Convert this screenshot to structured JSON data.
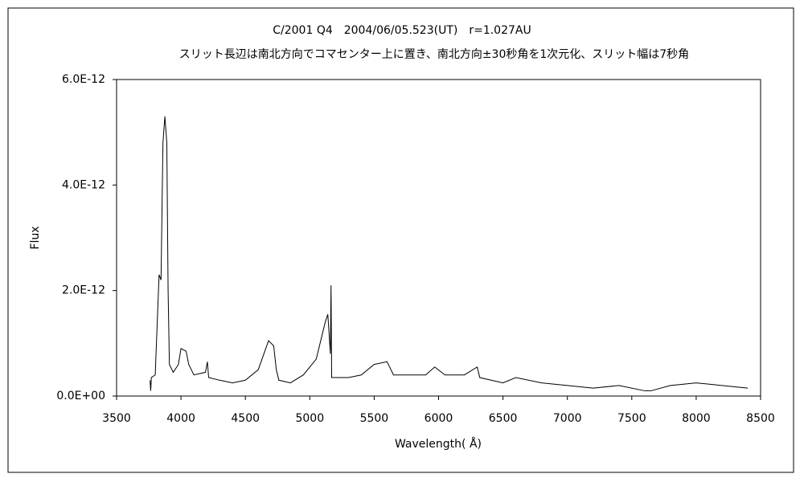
{
  "chart_data": {
    "type": "line",
    "title": "C/2001 Q4　2004/06/05.523(UT)　r=1.027AU",
    "subtitle": "スリット長辺は南北方向でコマセンター上に置き、南北方向±30秒角を1次元化、スリット幅は7秒角",
    "xlabel": "Wavelength( Å)",
    "ylabel": "Flux",
    "x": [
      3760,
      3765,
      3770,
      3800,
      3830,
      3845,
      3860,
      3875,
      3890,
      3900,
      3910,
      3940,
      3980,
      4000,
      4040,
      4060,
      4100,
      4190,
      4205,
      4215,
      4300,
      4400,
      4500,
      4600,
      4680,
      4720,
      4740,
      4760,
      4850,
      4950,
      5050,
      5120,
      5140,
      5160,
      5165,
      5170,
      5300,
      5400,
      5500,
      5600,
      5650,
      5700,
      5900,
      5970,
      6050,
      6200,
      6300,
      6320,
      6500,
      6600,
      6800,
      7000,
      7200,
      7400,
      7600,
      7650,
      7800,
      8000,
      8200,
      8400
    ],
    "series": [
      {
        "name": "Flux",
        "color": "#000000",
        "values": [
          3e-13,
          1e-13,
          3.5e-13,
          4e-13,
          2.3e-12,
          2.2e-12,
          4.8e-12,
          5.3e-12,
          4.8e-12,
          2e-12,
          6e-13,
          4.5e-13,
          6e-13,
          9e-13,
          8.5e-13,
          6e-13,
          4e-13,
          4.5e-13,
          6.5e-13,
          3.5e-13,
          3e-13,
          2.5e-13,
          3e-13,
          5e-13,
          1.05e-12,
          9.5e-13,
          5e-13,
          3e-13,
          2.5e-13,
          4e-13,
          7e-13,
          1.4e-12,
          1.55e-12,
          8e-13,
          2.1e-12,
          3.5e-13,
          3.5e-13,
          4e-13,
          6e-13,
          6.5e-13,
          4e-13,
          4e-13,
          4e-13,
          5.5e-13,
          4e-13,
          4e-13,
          5.5e-13,
          3.5e-13,
          2.5e-13,
          3.5e-13,
          2.5e-13,
          2e-13,
          1.5e-13,
          2e-13,
          1e-13,
          1e-13,
          2e-13,
          2.5e-13,
          2e-13,
          1.5e-13
        ]
      }
    ],
    "xlim": [
      3500,
      8500
    ],
    "xticks": [
      3500,
      4000,
      4500,
      5000,
      5500,
      6000,
      6500,
      7000,
      7500,
      8000,
      8500
    ],
    "ylim": [
      0,
      6e-12
    ],
    "yticks": [
      {
        "value": 0,
        "label": "0.0E+00"
      },
      {
        "value": 2e-12,
        "label": "2.0E-12"
      },
      {
        "value": 4e-12,
        "label": "4.0E-12"
      },
      {
        "value": 6e-12,
        "label": "6.0E-12"
      }
    ],
    "grid": false
  }
}
